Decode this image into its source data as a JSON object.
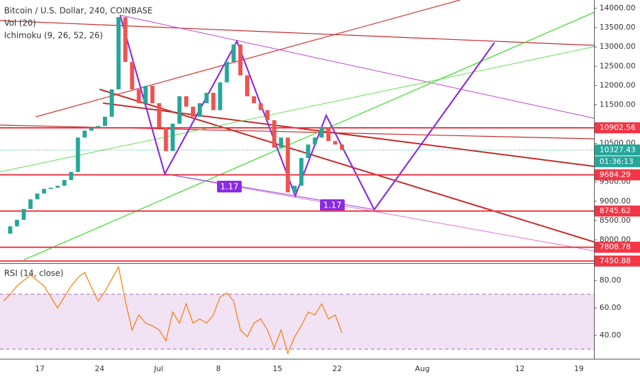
{
  "header": {
    "symbol": "Bitcoin / U.S. Dollar, 240, COINBASE",
    "volume": "Vol (20)",
    "ichimoku": "Ichimoku (9, 26, 52, 26)"
  },
  "chart_data": {
    "type": "candlestick",
    "close": [
      8160,
      8350,
      8520,
      8800,
      9050,
      9200,
      9320,
      9350,
      9400,
      9550,
      9760,
      10650,
      10830,
      10900,
      10950,
      11190,
      11900,
      13770,
      12610,
      11900,
      11540,
      11990,
      11540,
      10920,
      10300,
      11010,
      11720,
      11450,
      11190,
      11540,
      11810,
      11360,
      12080,
      12610,
      13060,
      12260,
      11720,
      11540,
      11360,
      11100,
      10390,
      10650,
      9230,
      9400,
      10120,
      10470,
      10650,
      10920,
      10560,
      10470,
      10330
    ],
    "up_color": "#26a69a",
    "down_color": "#ef5350",
    "ylim": [
      7394,
      14214
    ],
    "yticks": [
      {
        "value": 14000,
        "label": "14000.00"
      },
      {
        "value": 13500,
        "label": "13500.00"
      },
      {
        "value": 13000,
        "label": "13000.00"
      },
      {
        "value": 12500,
        "label": "12500.00"
      },
      {
        "value": 12000,
        "label": "12000.00"
      },
      {
        "value": 11500,
        "label": "11500.00"
      },
      {
        "value": 10500,
        "label": "10500.00"
      },
      {
        "value": 9500,
        "label": "9500.00"
      },
      {
        "value": 9000,
        "label": "9000.00"
      },
      {
        "value": 8500,
        "label": "8500.00"
      },
      {
        "value": 8000,
        "label": "8000.00"
      }
    ],
    "price_tags": [
      {
        "value": 10902.56,
        "color": "#f23645"
      },
      {
        "value": 10327.43,
        "color": "#26a69a"
      },
      {
        "value": 9684.29,
        "color": "#f23645"
      },
      {
        "value": 8745.62,
        "color": "#f23645"
      },
      {
        "value": 7808.78,
        "color": "#f23645"
      },
      {
        "value": 7450.88,
        "color": "#f23645"
      }
    ],
    "countdown": "01:36:13",
    "pattern_labels": [
      "1.17",
      "1.17"
    ],
    "dates": [
      "17",
      "24",
      "Jul",
      "8",
      "15",
      "22",
      "Aug",
      "12",
      "19"
    ],
    "rsi": {
      "title": "RSI (14, close)",
      "color": "#f57c00",
      "values": [
        65,
        70,
        76,
        80,
        84,
        80,
        76,
        68,
        60,
        68,
        76,
        82,
        86,
        75,
        65,
        72,
        81,
        90,
        65,
        44,
        55,
        49,
        47,
        44,
        36,
        57,
        49,
        63,
        49,
        52,
        49,
        55,
        68,
        71,
        65,
        44,
        39,
        49,
        52,
        44,
        31,
        44,
        27,
        39,
        47,
        57,
        55,
        63,
        52,
        55,
        42
      ],
      "ylim": [
        23,
        91.6
      ],
      "yticks": [
        {
          "value": 80,
          "label": "80.00"
        },
        {
          "value": 60,
          "label": "60.00"
        },
        {
          "value": 40,
          "label": "40.00"
        }
      ],
      "band": [
        30,
        70
      ]
    }
  }
}
